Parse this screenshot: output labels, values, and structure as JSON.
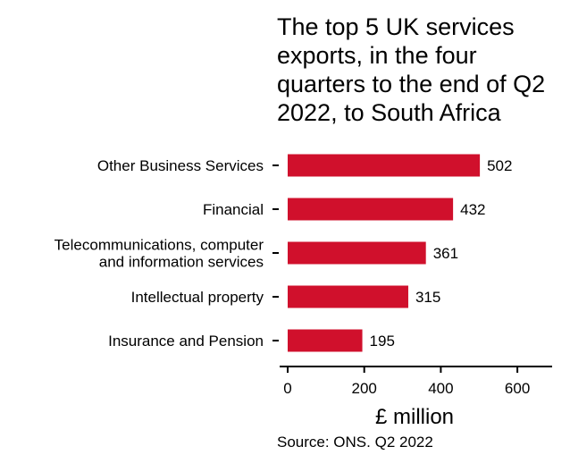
{
  "chart_data": {
    "type": "bar",
    "orientation": "horizontal",
    "title_lines": [
      "The top 5 UK services",
      "exports, in the four",
      "quarters to the end of Q2",
      "2022, to South Africa"
    ],
    "categories": [
      [
        "Other Business Services"
      ],
      [
        "Financial"
      ],
      [
        "Telecommunications, computer",
        "and information services"
      ],
      [
        "Intellectual property"
      ],
      [
        "Insurance and Pension"
      ]
    ],
    "values": [
      502,
      432,
      361,
      315,
      195
    ],
    "value_labels": [
      "502",
      "432",
      "361",
      "315",
      "195"
    ],
    "xlabel": "£ million",
    "xlim": [
      0,
      680
    ],
    "xticks": [
      0,
      200,
      400,
      600
    ],
    "xtick_labels": [
      "0",
      "200",
      "400",
      "600"
    ],
    "source": "Source: ONS. Q2 2022",
    "bar_color": "#d0102c",
    "grid": false
  }
}
